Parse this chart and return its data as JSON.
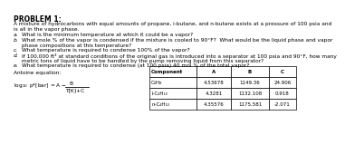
{
  "title": "PROBLEM 1:",
  "intro_line1": "A mixture of hydrocarbons with equal amounts of propane, i-butane, and n-butane exists at a pressure of 100 psia and",
  "intro_line2": "is all in the vapor phase.",
  "items": [
    [
      "a.",
      "What is the minimum temperature at which it could be a vapor?"
    ],
    [
      "b.",
      "What mole % of the vapor is condensed if the mixture is cooled to 90°F?  What would be the liquid phase and vapor"
    ],
    [
      "",
      "phase compositions at this temperature?"
    ],
    [
      "c.",
      "What temperature is required to condense 100% of the vapor?"
    ],
    [
      "d.",
      "If 100,000 ft³ at standard conditions of the original gas is introduced into a separator at 100 psia and 90°F, how many"
    ],
    [
      "",
      "metric tons of liquid have to be handled by the pump removing liquid from this separator?"
    ],
    [
      "e.",
      "What temperature is required to condense (at 100 psia) 40 mol % of the total vapor?"
    ]
  ],
  "antoine_label": "Antoine equation:",
  "table_headers": [
    "Component",
    "A",
    "B",
    "C"
  ],
  "table_rows": [
    [
      "C₃H₈",
      "4.53678",
      "1149.36",
      "24.906"
    ],
    [
      "i-C₄H₁₀",
      "4.3281",
      "1132.108",
      "0.918"
    ],
    [
      "n-C₄H₁₀",
      "4.35576",
      "1175.581",
      "-2.071"
    ]
  ],
  "bg_color": "#ffffff",
  "text_color": "#000000",
  "font_size_title": 5.5,
  "font_size_body": 4.2,
  "font_size_table": 4.0
}
